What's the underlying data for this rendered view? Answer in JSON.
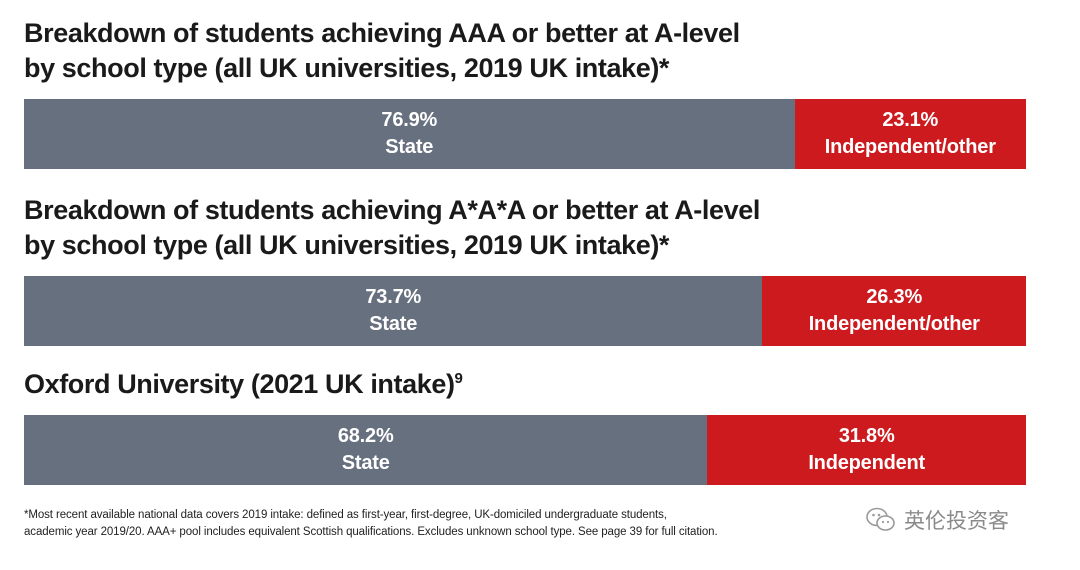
{
  "chart_data": [
    {
      "type": "bar",
      "orientation": "horizontal-stacked-100",
      "title_lines": [
        "Breakdown of students achieving AAA or better at A-level",
        "by school type (all UK universities, 2019 UK intake)*"
      ],
      "title_superscript": "",
      "series": [
        {
          "name": "State",
          "value": 76.9,
          "label": "76.9%",
          "color": "#67707e"
        },
        {
          "name": "Independent/other",
          "value": 23.1,
          "label": "23.1%",
          "color": "#cc1a1e"
        }
      ]
    },
    {
      "type": "bar",
      "orientation": "horizontal-stacked-100",
      "title_lines": [
        "Breakdown of students achieving A*A*A or better at A-level",
        "by school type (all UK universities, 2019 UK intake)*"
      ],
      "title_superscript": "",
      "series": [
        {
          "name": "State",
          "value": 73.7,
          "label": "73.7%",
          "color": "#67707e"
        },
        {
          "name": "Independent/other",
          "value": 26.3,
          "label": "26.3%",
          "color": "#cc1a1e"
        }
      ]
    },
    {
      "type": "bar",
      "orientation": "horizontal-stacked-100",
      "title_lines": [
        "Oxford University (2021 UK intake)"
      ],
      "title_superscript": "9",
      "series": [
        {
          "name": "State",
          "value": 68.2,
          "label": "68.2%",
          "color": "#67707e"
        },
        {
          "name": "Independent",
          "value": 31.8,
          "label": "31.8%",
          "color": "#cc1a1e"
        }
      ]
    }
  ],
  "footnote_lines": [
    "*Most recent available national data covers 2019 intake: defined as first-year, first-degree, UK-domiciled undergraduate students,",
    "academic year 2019/20. AAA+ pool includes equivalent Scottish qualifications. Excludes unknown school type. See page 39 for full citation."
  ],
  "watermark": {
    "text": "英伦投资客",
    "icon": "wechat-icon"
  }
}
